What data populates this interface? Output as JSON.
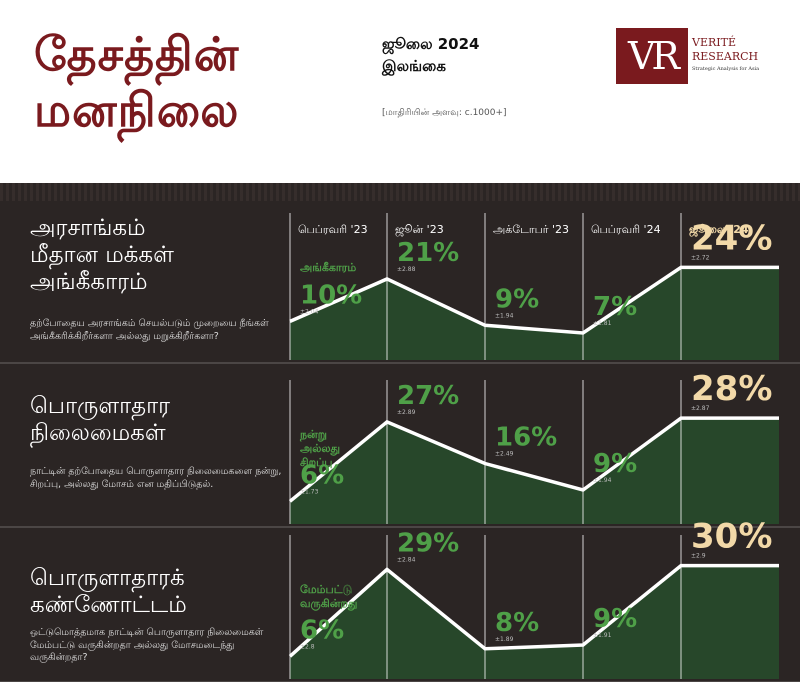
{
  "header": {
    "title_line1": "தேசத்தின்",
    "title_line2": "மனநிலை",
    "period_line1": "ஜூலை 2024",
    "period_line2": "இலங்கை",
    "sample": "[மாதிரியின் அளவு: c.1000+]",
    "logo_mark": "VR",
    "logo_name_line1": "VERITÉ",
    "logo_name_line2": "RESEARCH",
    "logo_tagline": "Strategic Analysis for Asia"
  },
  "columns": [
    "பெப்ரவரி '23",
    "ஜூன் '23",
    "அக்டோபர் '23",
    "பெப்ரவரி '24",
    "ஜூலை' 24"
  ],
  "rows": [
    {
      "title_lines": [
        "அரசாங்கம்",
        "மீதான மக்கள்",
        "அங்கீகாரம்"
      ],
      "question": "தற்போதைய அரசாங்கம் செயல்படும் முறையை நீங்கள் அங்கீகரிக்கிறீர்களா அல்லது மறுக்கிறீர்களா?",
      "series_label_lines": [
        "அங்கீகாரம்"
      ],
      "values_text": [
        "10%",
        "21%",
        "9%",
        "7%",
        "24%"
      ],
      "moe": [
        "±2.04",
        "±2.88",
        "±1.94",
        "±1.81",
        "±2.72"
      ]
    },
    {
      "title_lines": [
        "பொருளாதார",
        "நிலைமைகள்"
      ],
      "question": "நாட்டின் தற்போதைய பொருளாதார நிலைமைகளை நன்று, சிறப்பு, அல்லது மோசம் என மதிப்பிடுதல்.",
      "series_label_lines": [
        "நன்று",
        "அல்லது",
        "சிறப்பு"
      ],
      "values_text": [
        "6%",
        "27%",
        "16%",
        "9%",
        "28%"
      ],
      "moe": [
        "±1.73",
        "±2.89",
        "±2.49",
        "±1.94",
        "±2.87"
      ]
    },
    {
      "title_lines": [
        "பொருளாதாரக்",
        "கண்ணோட்டம்"
      ],
      "question": "ஒட்டுமொத்தமாக நாட்டின் பொருளாதார நிலைமைகள் மேம்பட்டு வருகின்றதா அல்லது மோசமடைந்து வருகின்றதா?",
      "series_label_lines": [
        "மேம்பட்டு",
        "வருகின்றது"
      ],
      "values_text": [
        "6%",
        "29%",
        "8%",
        "9%",
        "30%"
      ],
      "moe": [
        "±2.8",
        "±2.84",
        "±1.89",
        "±1.91",
        "±2.9"
      ]
    }
  ],
  "chart_data": [
    {
      "type": "area",
      "title": "அரசாங்கம் மீதான மக்கள் அங்கீகாரம்",
      "categories": [
        "பெப்ரவரி '23",
        "ஜூன் '23",
        "அக்டோபர் '23",
        "பெப்ரவரி '24",
        "ஜூலை' 24"
      ],
      "series": [
        {
          "name": "அங்கீகாரம்",
          "values": [
            10,
            21,
            9,
            7,
            24
          ]
        }
      ],
      "ylim": [
        0,
        40
      ]
    },
    {
      "type": "area",
      "title": "பொருளாதார நிலைமைகள்",
      "categories": [
        "பெப்ரவரி '23",
        "ஜூன் '23",
        "அக்டோபர் '23",
        "பெப்ரவரி '24",
        "ஜூலை' 24"
      ],
      "series": [
        {
          "name": "நன்று அல்லது சிறப்பு",
          "values": [
            6,
            27,
            16,
            9,
            28
          ]
        }
      ],
      "ylim": [
        0,
        40
      ]
    },
    {
      "type": "area",
      "title": "பொருளாதாரக் கண்ணோட்டம்",
      "categories": [
        "பெப்ரவரி '23",
        "ஜூன் '23",
        "அக்டோபர் '23",
        "பெப்ரவரி '24",
        "ஜூலை' 24"
      ],
      "series": [
        {
          "name": "மேம்பட்டு வருகின்றது",
          "values": [
            6,
            29,
            8,
            9,
            30
          ]
        }
      ],
      "ylim": [
        0,
        40
      ]
    }
  ],
  "colors": {
    "brand": "#7a1a1e",
    "background_dark": "#2b2524",
    "value_green": "#4fa048",
    "area_fill": "#27472a",
    "highlight": "#f2d9a8",
    "line": "#ffffff"
  }
}
